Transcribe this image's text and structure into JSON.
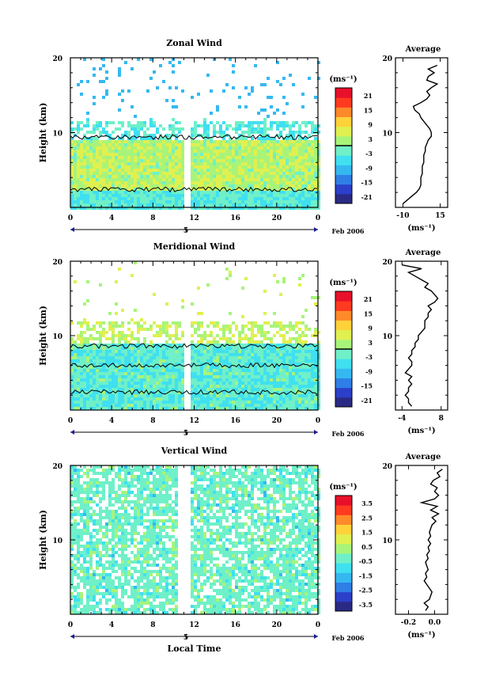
{
  "xlabel": "Local Time",
  "date_label": "Feb 2006",
  "ylabel": "Height (km)",
  "unit_label": "(ms⁻¹)",
  "average_title": "Average",
  "chart_data": [
    {
      "type": "heatmap",
      "title": "Zonal Wind",
      "x_ticks": [
        "0",
        "4",
        "8",
        "12",
        "16",
        "20",
        "0"
      ],
      "x_range": [
        0,
        24
      ],
      "day_marker": "5",
      "y_ticks": [
        "10",
        "20"
      ],
      "y_range": [
        0,
        20
      ],
      "colorbar_ticks": [
        "21",
        "15",
        "9",
        "3",
        "-3",
        "-9",
        "-15",
        "-21"
      ],
      "colorbar_range": [
        -24,
        24
      ],
      "contour_level": 0,
      "profile": {
        "title": "Average",
        "x_ticks": [
          "-10",
          "15"
        ],
        "x_range": [
          -15,
          20
        ],
        "xlabel": "(ms⁻¹)",
        "y_ticks": [
          "10",
          "20"
        ],
        "heights_km": [
          0.5,
          1,
          1.5,
          2,
          2.5,
          3,
          3.5,
          4,
          4.5,
          5,
          5.5,
          6,
          6.5,
          7,
          7.5,
          8,
          8.5,
          9,
          9.5,
          10,
          10.5,
          11,
          11.5,
          12,
          12.5,
          13,
          13.5,
          14,
          14.5,
          15,
          15.5,
          16,
          16.5,
          17,
          17.5,
          18,
          18.5,
          19
        ],
        "values": [
          -10,
          -7,
          -4,
          -1,
          1,
          2,
          2,
          2,
          3,
          3,
          3,
          4,
          4,
          4,
          5,
          5,
          6,
          7,
          9,
          9,
          8,
          6,
          4,
          2,
          1,
          -2,
          -3,
          2,
          6,
          8,
          6,
          9,
          13,
          6,
          7,
          11,
          7,
          13
        ]
      }
    },
    {
      "type": "heatmap",
      "title": "Meridional Wind",
      "x_ticks": [
        "0",
        "4",
        "8",
        "12",
        "16",
        "20",
        "0"
      ],
      "x_range": [
        0,
        24
      ],
      "day_marker": "5",
      "y_ticks": [
        "10",
        "20"
      ],
      "y_range": [
        0,
        20
      ],
      "colorbar_ticks": [
        "21",
        "15",
        "9",
        "3",
        "-3",
        "-9",
        "-15",
        "-21"
      ],
      "colorbar_range": [
        -24,
        24
      ],
      "contour_level": 0,
      "profile": {
        "title": "Average",
        "x_ticks": [
          "-4",
          "8"
        ],
        "x_range": [
          -6,
          10
        ],
        "xlabel": "(ms⁻¹)",
        "y_ticks": [
          "10",
          "20"
        ],
        "heights_km": [
          0.5,
          1,
          1.5,
          2,
          2.5,
          3,
          3.5,
          4,
          4.5,
          5,
          5.5,
          6,
          6.5,
          7,
          7.5,
          8,
          8.5,
          9,
          9.5,
          10,
          10.5,
          11,
          11.5,
          12,
          12.5,
          13,
          13.5,
          14,
          14.5,
          15,
          15.5,
          16,
          16.5,
          17,
          17.5,
          18,
          18.5,
          19,
          19.5
        ],
        "values": [
          -1,
          -2,
          -2,
          -3,
          -2,
          -2,
          -1,
          -2,
          -1,
          -3,
          -2,
          -1,
          -1,
          -2,
          -1,
          -1,
          0,
          0,
          1,
          1,
          2,
          3,
          3,
          3,
          4,
          4,
          5,
          4,
          6,
          7,
          6,
          5,
          3,
          4,
          2,
          0,
          -2,
          2,
          -4
        ]
      }
    },
    {
      "type": "heatmap",
      "title": "Vertical Wind",
      "x_ticks": [
        "0",
        "4",
        "8",
        "12",
        "16",
        "20",
        "0"
      ],
      "x_range": [
        0,
        24
      ],
      "day_marker": "5",
      "y_ticks": [
        "10",
        "20"
      ],
      "y_range": [
        0,
        20
      ],
      "colorbar_ticks": [
        "3.5",
        "2.5",
        "1.5",
        "0.5",
        "-0.5",
        "-1.5",
        "-2.5",
        "-3.5"
      ],
      "colorbar_range": [
        -4,
        4
      ],
      "profile": {
        "title": "Average",
        "x_ticks": [
          "-0.2",
          "0.0"
        ],
        "x_range": [
          -0.3,
          0.1
        ],
        "xlabel": "(ms⁻¹)",
        "y_ticks": [
          "10",
          "20"
        ],
        "heights_km": [
          0.5,
          1,
          1.5,
          2,
          2.5,
          3,
          3.5,
          4,
          4.5,
          5,
          5.5,
          6,
          6.5,
          7,
          7.5,
          8,
          8.5,
          9,
          9.5,
          10,
          10.5,
          11,
          11.5,
          12,
          12.5,
          13,
          13.5,
          14,
          14.5,
          15,
          15.5,
          16,
          16.5,
          17,
          17.5,
          18,
          18.5,
          19,
          19.5
        ],
        "values": [
          -0.07,
          -0.05,
          -0.08,
          -0.04,
          -0.03,
          -0.02,
          -0.04,
          -0.06,
          -0.08,
          -0.06,
          -0.07,
          -0.05,
          -0.06,
          -0.07,
          -0.05,
          -0.06,
          -0.04,
          -0.05,
          -0.03,
          -0.05,
          -0.03,
          -0.04,
          -0.03,
          -0.02,
          0.01,
          -0.02,
          0.03,
          -0.03,
          0.02,
          -0.1,
          0.0,
          0.03,
          0.0,
          0.02,
          -0.03,
          -0.01,
          0.04,
          0.02,
          0.06
        ]
      }
    }
  ],
  "colors": {
    "scale": [
      "#2a2a85",
      "#2c3fc9",
      "#2f7fe6",
      "#35b8f0",
      "#40e0f0",
      "#6ff0c8",
      "#a8f47a",
      "#e0f050",
      "#ffd23a",
      "#ff8a2a",
      "#ff3a20",
      "#e8102a"
    ]
  }
}
